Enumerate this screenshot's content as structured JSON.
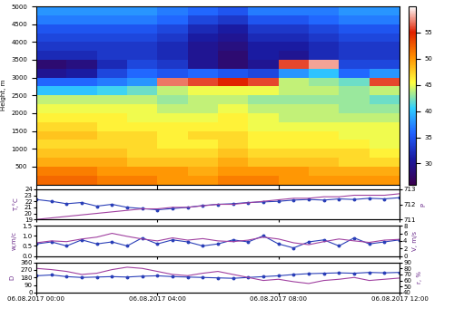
{
  "chart_data": [
    {
      "type": "heatmap",
      "y_label": "Height, m",
      "x": [
        0.5,
        1.5,
        2.5,
        3.5,
        4.5,
        5.5,
        6.5,
        7.5,
        8.5,
        9.5,
        10.5,
        11.5
      ],
      "y": [
        125,
        375,
        625,
        875,
        1125,
        1375,
        1625,
        1875,
        2125,
        2375,
        2625,
        2875,
        3125,
        3375,
        3625,
        3875,
        4125,
        4375,
        4625,
        4875
      ],
      "cells": [
        [
          52,
          52,
          51,
          51,
          50,
          50,
          51,
          51,
          50,
          50,
          50,
          50
        ],
        [
          51,
          51,
          50,
          50,
          50,
          49,
          50,
          50,
          50,
          49,
          49,
          49
        ],
        [
          49,
          49,
          49,
          48,
          48,
          48,
          49,
          48,
          48,
          48,
          47,
          47
        ],
        [
          48,
          48,
          48,
          47,
          47,
          47,
          48,
          47,
          47,
          47,
          47,
          46
        ],
        [
          47,
          47,
          47,
          47,
          46,
          46,
          47,
          46,
          46,
          46,
          46,
          45
        ],
        [
          48,
          48,
          47,
          47,
          46,
          47,
          47,
          46,
          46,
          46,
          45,
          45
        ],
        [
          47,
          47,
          46,
          46,
          46,
          46,
          46,
          45,
          45,
          45,
          45,
          45
        ],
        [
          46,
          46,
          46,
          45,
          45,
          45,
          46,
          45,
          44,
          44,
          44,
          44
        ],
        [
          45,
          45,
          45,
          45,
          44,
          44,
          45,
          44,
          44,
          44,
          43,
          43
        ],
        [
          44,
          44,
          44,
          44,
          43,
          44,
          44,
          43,
          43,
          43,
          43,
          42
        ],
        [
          40,
          40,
          41,
          42,
          44,
          45,
          45,
          45,
          44,
          44,
          43,
          44
        ],
        [
          36,
          36,
          37,
          38,
          57,
          56,
          55,
          56,
          44,
          43,
          42,
          56
        ],
        [
          30,
          31,
          34,
          36,
          35,
          36,
          35,
          34,
          38,
          40,
          36,
          38
        ],
        [
          28,
          29,
          32,
          34,
          33,
          30,
          28,
          30,
          56,
          58,
          34,
          34
        ],
        [
          32,
          32,
          33,
          33,
          32,
          30,
          28,
          31,
          30,
          32,
          33,
          33
        ],
        [
          33,
          33,
          33,
          33,
          32,
          30,
          29,
          31,
          31,
          32,
          33,
          33
        ],
        [
          34,
          34,
          34,
          34,
          33,
          31,
          30,
          32,
          32,
          33,
          34,
          34
        ],
        [
          35,
          35,
          35,
          35,
          34,
          32,
          31,
          33,
          33,
          34,
          35,
          35
        ],
        [
          37,
          37,
          37,
          37,
          36,
          34,
          33,
          35,
          35,
          36,
          37,
          37
        ],
        [
          38,
          38,
          38,
          38,
          37,
          36,
          35,
          37,
          37,
          37,
          38,
          38
        ]
      ],
      "colorbar_range": [
        26,
        60
      ],
      "colorbar_ticks": [
        30,
        35,
        40,
        45,
        50,
        55
      ],
      "xlim": [
        0,
        12
      ],
      "ylim": [
        0,
        5000
      ],
      "xticks": [
        {
          "value": 0,
          "label": "06.08.2017 00:00"
        },
        {
          "value": 4,
          "label": "06.08.2017 04:00"
        },
        {
          "value": 8,
          "label": "06.08.2017 08:00"
        },
        {
          "value": 12,
          "label": "06.08.2017 12:00"
        }
      ],
      "yticks": [
        500,
        1000,
        1500,
        2000,
        2500,
        3000,
        3500,
        4000,
        4500,
        5000
      ],
      "tick_labels": "y"
    },
    {
      "type": "line",
      "y_label": "T,°C",
      "y2_label": "P",
      "x": [
        0,
        0.5,
        1,
        1.5,
        2,
        2.5,
        3,
        3.5,
        4,
        4.5,
        5,
        5.5,
        6,
        6.5,
        7,
        7.5,
        8,
        8.5,
        9,
        9.5,
        10,
        10.5,
        11,
        11.5,
        12
      ],
      "series": [
        {
          "color": "#2a3fb8",
          "marker": "o",
          "values": [
            22.3,
            22.0,
            21.6,
            21.8,
            21.2,
            21.5,
            21.0,
            20.8,
            20.6,
            20.8,
            21.0,
            21.3,
            21.5,
            21.6,
            21.8,
            21.9,
            22.0,
            22.2,
            22.3,
            22.2,
            22.4,
            22.3,
            22.5,
            22.4,
            22.6
          ]
        },
        {
          "color": "#a040a0",
          "axis": "y2",
          "values": [
            711.0,
            711.1,
            711.2,
            711.3,
            711.4,
            711.5,
            711.6,
            711.7,
            711.7,
            711.8,
            711.8,
            711.9,
            712.0,
            712.0,
            712.1,
            712.2,
            712.3,
            712.4,
            712.4,
            712.5,
            712.5,
            712.6,
            712.6,
            712.6,
            712.7
          ]
        }
      ],
      "xlim": [
        0,
        12
      ],
      "ylim": [
        19,
        24
      ],
      "yticks": [
        19,
        20,
        21,
        22,
        23,
        24
      ],
      "y2lim": [
        711,
        713
      ],
      "y2ticks": [
        711,
        712,
        713
      ],
      "xticks": [
        {
          "value": 0,
          "label": "06.08.2017 00:00"
        },
        {
          "value": 4,
          "label": "06.08.2017 04:00"
        },
        {
          "value": 8,
          "label": "06.08.2017 08:00"
        },
        {
          "value": 12,
          "label": "06.08.2017 12:00"
        }
      ],
      "tick_labels": "y"
    },
    {
      "type": "line",
      "y_label": "w,m/c",
      "y2_label": "V, m/s",
      "x": [
        0,
        0.5,
        1,
        1.5,
        2,
        2.5,
        3,
        3.5,
        4,
        4.5,
        5,
        5.5,
        6,
        6.5,
        7,
        7.5,
        8,
        8.5,
        9,
        9.5,
        10,
        10.5,
        11,
        11.5,
        12
      ],
      "series": [
        {
          "color": "#2a3fb8",
          "marker": "o",
          "values": [
            0.6,
            0.7,
            0.5,
            0.8,
            0.6,
            0.7,
            0.5,
            0.9,
            0.6,
            0.8,
            0.7,
            0.5,
            0.6,
            0.8,
            0.7,
            1.0,
            0.6,
            0.4,
            0.7,
            0.8,
            0.5,
            0.9,
            0.6,
            0.7,
            0.8
          ]
        },
        {
          "color": "#a040a0",
          "axis": "y2",
          "values": [
            3.5,
            4.0,
            3.8,
            4.5,
            5.0,
            6.0,
            5.2,
            4.5,
            4.0,
            4.8,
            4.2,
            4.6,
            4.0,
            3.8,
            4.2,
            5.0,
            4.5,
            3.5,
            3.0,
            3.8,
            4.5,
            4.0,
            3.6,
            4.2,
            4.4
          ]
        }
      ],
      "xlim": [
        0,
        12
      ],
      "ylim": [
        0,
        1.5
      ],
      "yticks": [
        {
          "value": 0,
          "label": "0.0"
        },
        {
          "value": 0.5,
          "label": "0.5"
        },
        {
          "value": 1,
          "label": "1.0"
        },
        {
          "value": 1.5,
          "label": "1.5"
        }
      ],
      "y2lim": [
        0,
        8
      ],
      "y2ticks": [
        0,
        2,
        4,
        6,
        8
      ],
      "xticks": [
        {
          "value": 0,
          "label": "06.08.2017 00:00"
        },
        {
          "value": 4,
          "label": "06.08.2017 04:00"
        },
        {
          "value": 8,
          "label": "06.08.2017 08:00"
        },
        {
          "value": 12,
          "label": "06.08.2017 12:00"
        }
      ],
      "tick_labels": "y"
    },
    {
      "type": "line",
      "y_label": "D",
      "y2_label": "r, %",
      "x": [
        0,
        0.5,
        1,
        1.5,
        2,
        2.5,
        3,
        3.5,
        4,
        4.5,
        5,
        5.5,
        6,
        6.5,
        7,
        7.5,
        8,
        8.5,
        9,
        9.5,
        10,
        10.5,
        11,
        11.5,
        12
      ],
      "series": [
        {
          "color": "#2a3fb8",
          "marker": "o",
          "values": [
            200,
            210,
            190,
            180,
            185,
            190,
            185,
            195,
            200,
            190,
            185,
            180,
            175,
            170,
            180,
            190,
            200,
            215,
            225,
            230,
            235,
            230,
            240,
            235,
            240
          ]
        },
        {
          "color": "#a040a0",
          "axis": "y2",
          "values": [
            80,
            78,
            75,
            70,
            72,
            78,
            82,
            80,
            75,
            70,
            68,
            72,
            75,
            70,
            65,
            60,
            62,
            58,
            55,
            60,
            62,
            65,
            60,
            62,
            64
          ]
        }
      ],
      "xlim": [
        0,
        12
      ],
      "ylim": [
        0,
        360
      ],
      "yticks": [
        0,
        90,
        180,
        270,
        360
      ],
      "y2lim": [
        40,
        90
      ],
      "y2ticks": [
        40,
        50,
        60,
        70,
        80,
        90
      ],
      "xticks": [
        {
          "value": 0,
          "label": "06.08.2017 00:00"
        },
        {
          "value": 4,
          "label": "06.08.2017 04:00"
        },
        {
          "value": 8,
          "label": "06.08.2017 08:00"
        },
        {
          "value": 12,
          "label": "06.08.2017 12:00"
        }
      ]
    }
  ]
}
